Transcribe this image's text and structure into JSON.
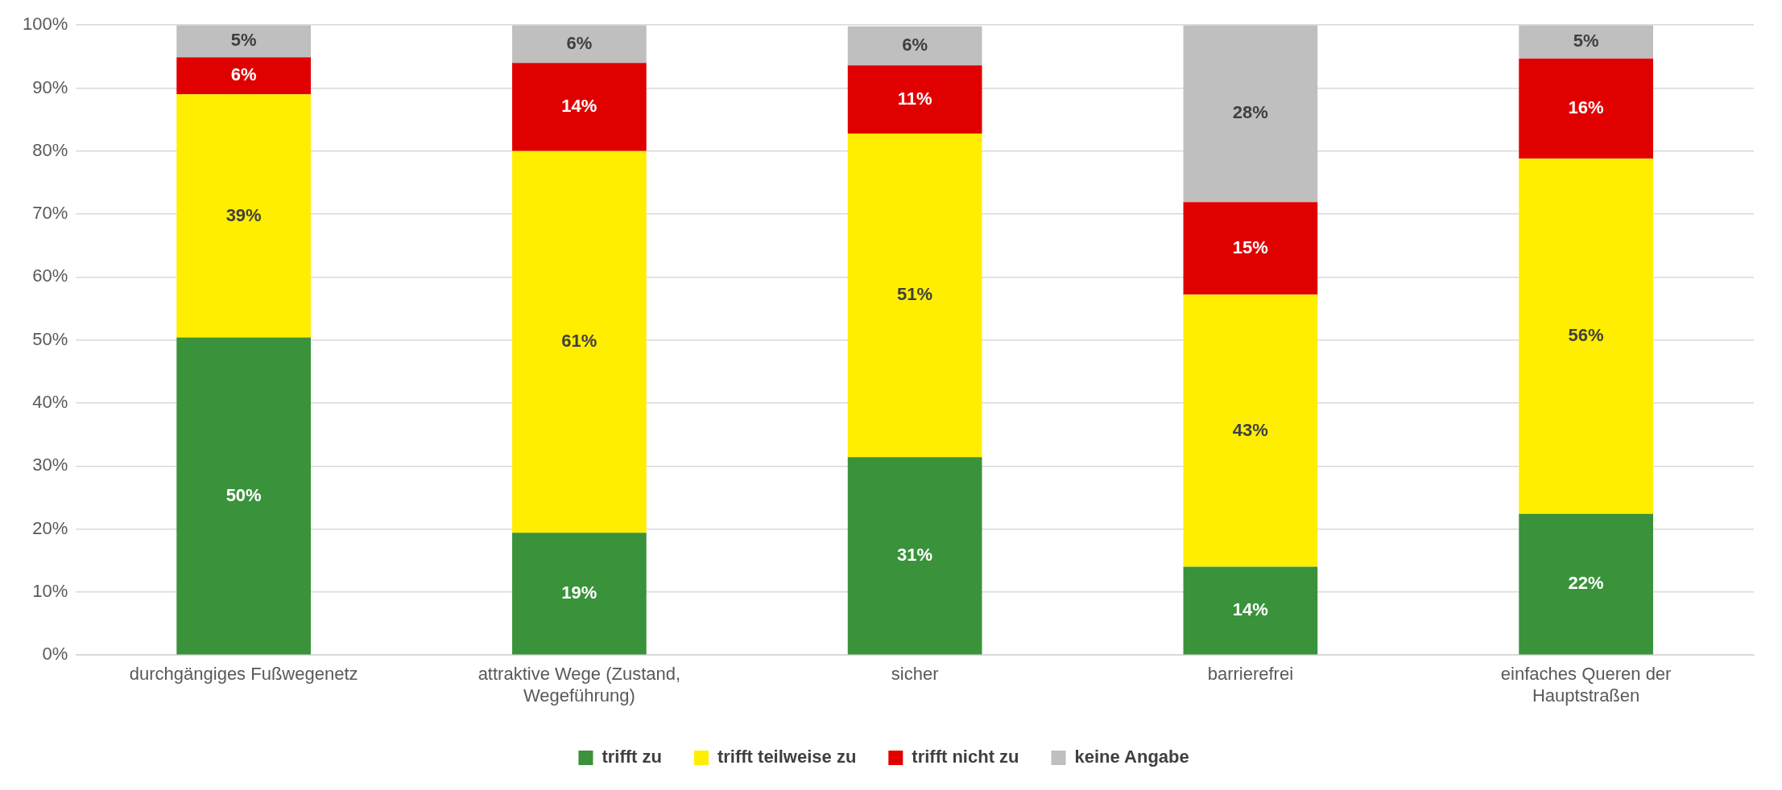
{
  "chart_data": {
    "type": "bar",
    "stacked": true,
    "grid": "y",
    "legend": "bottom",
    "categories": [
      "durchgängiges Fußwegenetz",
      "attraktive Wege (Zustand, Wegeführung)",
      "sicher",
      "barrierefrei",
      "einfaches Queren der Hauptstraßen"
    ],
    "ylim": [
      0,
      100
    ],
    "yticks": [
      {
        "value": 0,
        "label": "0%"
      },
      {
        "value": 10,
        "label": "10%"
      },
      {
        "value": 20,
        "label": "20%"
      },
      {
        "value": 30,
        "label": "30%"
      },
      {
        "value": 40,
        "label": "40%"
      },
      {
        "value": 50,
        "label": "50%"
      },
      {
        "value": 60,
        "label": "60%"
      },
      {
        "value": 70,
        "label": "70%"
      },
      {
        "value": 80,
        "label": "80%"
      },
      {
        "value": 90,
        "label": "90%"
      },
      {
        "value": 100,
        "label": "100%"
      }
    ],
    "series": [
      {
        "name": "trifft zu",
        "color": "#3a923a",
        "values": [
          50.4,
          19.4,
          31.4,
          14.0,
          22.4
        ],
        "value_labels": [
          "50%",
          "19%",
          "31%",
          "14%",
          "22%"
        ]
      },
      {
        "name": "trifft teilweise zu",
        "color": "#ffee00",
        "values": [
          38.6,
          60.6,
          51.4,
          43.2,
          56.4
        ],
        "value_labels": [
          "39%",
          "61%",
          "51%",
          "43%",
          "56%"
        ]
      },
      {
        "name": "trifft nicht zu",
        "color": "#e00000",
        "values": [
          5.9,
          14.0,
          10.8,
          14.7,
          15.9
        ],
        "value_labels": [
          "6%",
          "14%",
          "11%",
          "15%",
          "16%"
        ]
      },
      {
        "name": "keine Angabe",
        "color": "#bfbfbf",
        "values": [
          5.1,
          6.0,
          6.2,
          28.1,
          5.3
        ],
        "value_labels": [
          "5%",
          "6%",
          "6%",
          "28%",
          "5%"
        ]
      }
    ]
  }
}
